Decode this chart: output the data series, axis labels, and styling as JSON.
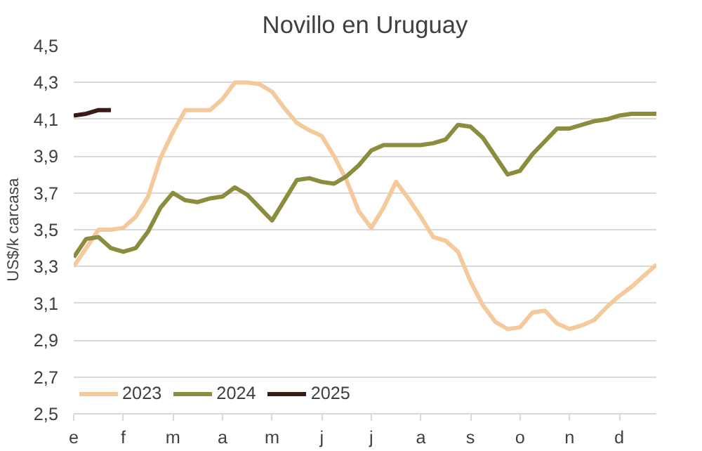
{
  "chart_data": {
    "type": "line",
    "title": "Novillo en Uruguay",
    "ylabel": "US$/k carcasa",
    "categories": [
      "e",
      null,
      null,
      null,
      "f",
      null,
      null,
      null,
      "m",
      null,
      null,
      null,
      "a",
      null,
      null,
      null,
      "m",
      null,
      null,
      null,
      "j",
      null,
      null,
      null,
      "j",
      null,
      null,
      null,
      "a",
      null,
      null,
      null,
      "s",
      null,
      null,
      null,
      "o",
      null,
      null,
      null,
      "n",
      null,
      null,
      null,
      "d",
      null,
      null,
      null
    ],
    "ylim": [
      2.5,
      4.5
    ],
    "yticks": [
      {
        "value": 2.5,
        "label": "2,5"
      },
      {
        "value": 2.7,
        "label": "2,7"
      },
      {
        "value": 2.9,
        "label": "2,9"
      },
      {
        "value": 3.1,
        "label": "3,1"
      },
      {
        "value": 3.3,
        "label": "3,3"
      },
      {
        "value": 3.5,
        "label": "3,5"
      },
      {
        "value": 3.7,
        "label": "3,7"
      },
      {
        "value": 3.9,
        "label": "3,9"
      },
      {
        "value": 4.1,
        "label": "4,1"
      },
      {
        "value": 4.3,
        "label": "4,3"
      },
      {
        "value": 4.5,
        "label": "4,5"
      }
    ],
    "grid": "y",
    "legend": "bottom left",
    "marker": "none",
    "line_style": "solid",
    "series": [
      {
        "name": "2023",
        "color": "#f4c99b",
        "values": [
          3.3,
          3.4,
          3.5,
          3.5,
          3.51,
          3.57,
          3.68,
          3.89,
          4.03,
          4.15,
          4.15,
          4.15,
          4.21,
          4.3,
          4.3,
          4.29,
          4.25,
          4.16,
          4.08,
          4.04,
          4.01,
          3.9,
          3.77,
          3.6,
          3.51,
          3.62,
          3.76,
          3.67,
          3.57,
          3.46,
          3.44,
          3.38,
          3.22,
          3.09,
          3.0,
          2.96,
          2.97,
          3.05,
          3.06,
          2.99,
          2.96,
          2.98,
          3.01,
          3.08,
          3.14,
          3.19,
          3.25,
          3.31
        ]
      },
      {
        "name": "2024",
        "color": "#8c8c3e",
        "values": [
          3.35,
          3.45,
          3.46,
          3.4,
          3.38,
          3.4,
          3.49,
          3.62,
          3.7,
          3.66,
          3.65,
          3.67,
          3.68,
          3.73,
          3.69,
          3.62,
          3.55,
          3.66,
          3.77,
          3.78,
          3.76,
          3.75,
          3.79,
          3.85,
          3.93,
          3.96,
          3.96,
          3.96,
          3.96,
          3.97,
          3.99,
          4.07,
          4.06,
          4.0,
          3.9,
          3.8,
          3.82,
          3.91,
          3.98,
          4.05,
          4.05,
          4.07,
          4.09,
          4.1,
          4.12,
          4.13,
          4.13,
          4.13
        ]
      },
      {
        "name": "2025",
        "color": "#3b1a14",
        "values": [
          4.12,
          4.13,
          4.15,
          4.15,
          null,
          null,
          null,
          null,
          null,
          null,
          null,
          null,
          null,
          null,
          null,
          null,
          null,
          null,
          null,
          null,
          null,
          null,
          null,
          null,
          null,
          null,
          null,
          null,
          null,
          null,
          null,
          null,
          null,
          null,
          null,
          null,
          null,
          null,
          null,
          null,
          null,
          null,
          null,
          null,
          null,
          null,
          null,
          null
        ]
      }
    ]
  }
}
